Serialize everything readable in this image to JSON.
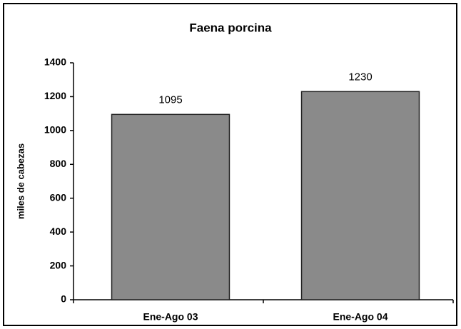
{
  "chart_data": {
    "type": "bar",
    "title": "Faena porcina",
    "y_label": "miles de cabezas",
    "categories": [
      "Ene-Ago 03",
      "Ene-Ago 04"
    ],
    "values": [
      1095,
      1230
    ],
    "color": "#8a8a8a",
    "ylim": [
      0,
      1400
    ],
    "yticks": [
      0,
      200,
      400,
      600,
      800,
      1000,
      1200,
      1400
    ],
    "grid": false
  }
}
